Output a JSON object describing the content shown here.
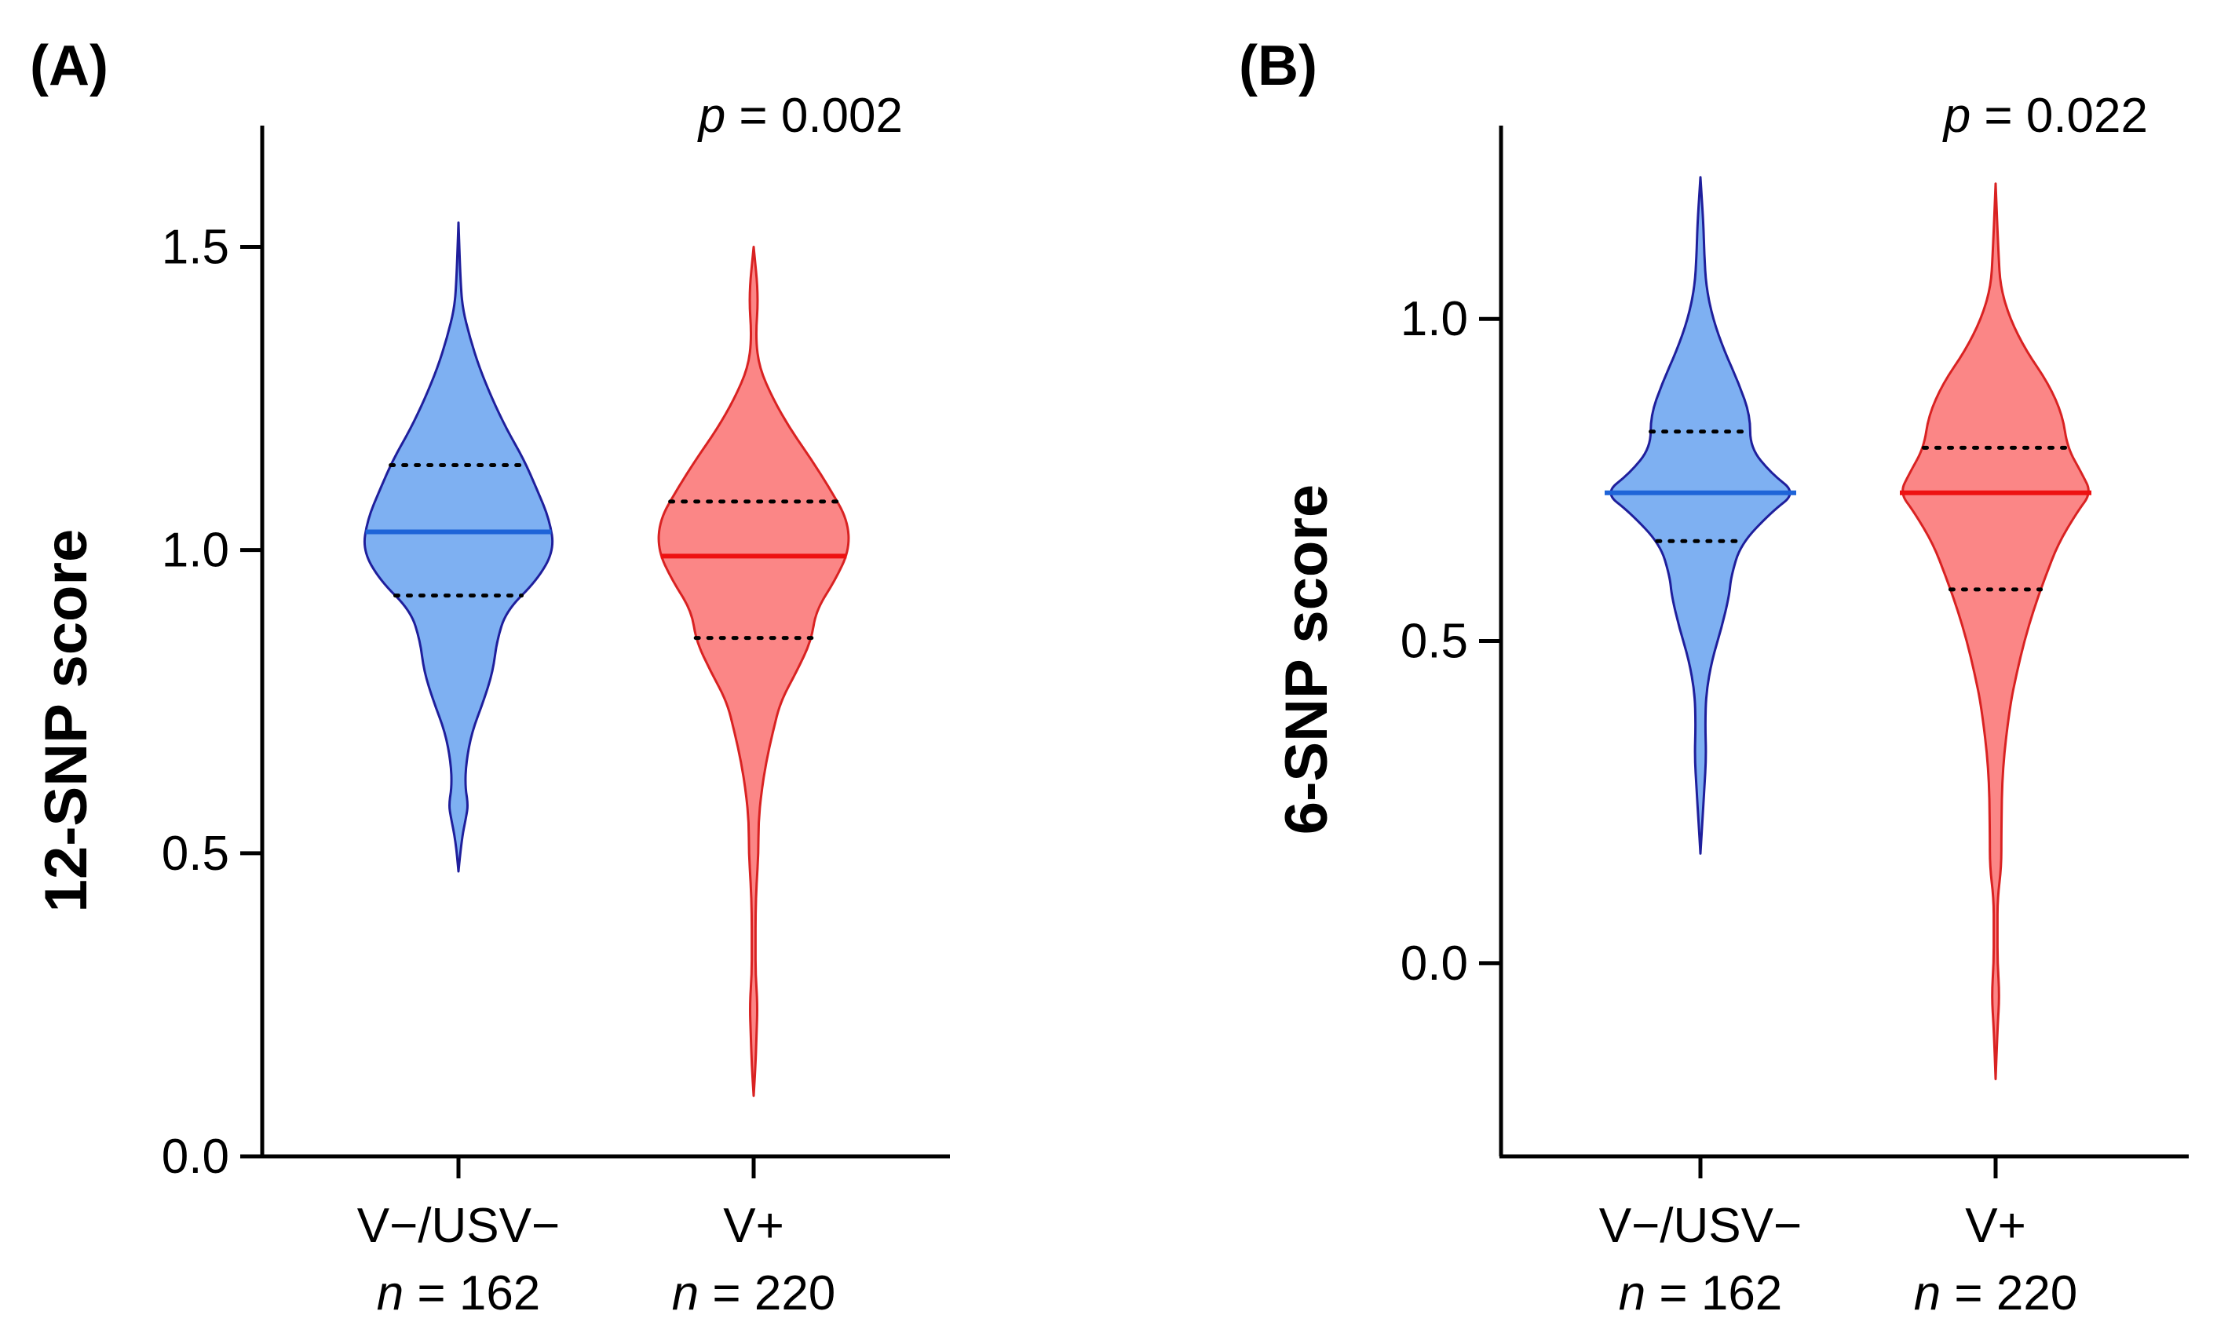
{
  "chart_data": [
    {
      "panel": "(A)",
      "type": "violin",
      "ylabel": "12-SNP score",
      "ylim": [
        0,
        1.7
      ],
      "yticks": [
        "0.0",
        "0.5",
        "1.0",
        "1.5"
      ],
      "ytick_values": [
        0,
        0.5,
        1.0,
        1.5
      ],
      "p_prefix": "p",
      "p_rest": " = 0.002",
      "groups": [
        {
          "name": "V−/USV−",
          "n_prefix": "n",
          "n_rest": " = 162",
          "fill": "#7eb0f2",
          "stroke": "#1f1f9c",
          "median_color": "#1e64d8",
          "min": 0.47,
          "max": 1.54,
          "median": 1.03,
          "q1": 0.925,
          "q3": 1.14,
          "density": [
            [
              0.47,
              0
            ],
            [
              0.52,
              0.03
            ],
            [
              0.56,
              0.08
            ],
            [
              0.58,
              0.1
            ],
            [
              0.61,
              0.07
            ],
            [
              0.65,
              0.08
            ],
            [
              0.7,
              0.14
            ],
            [
              0.75,
              0.26
            ],
            [
              0.8,
              0.36
            ],
            [
              0.85,
              0.4
            ],
            [
              0.9,
              0.5
            ],
            [
              0.95,
              0.82
            ],
            [
              1.0,
              1.0
            ],
            [
              1.05,
              0.95
            ],
            [
              1.1,
              0.82
            ],
            [
              1.15,
              0.68
            ],
            [
              1.2,
              0.5
            ],
            [
              1.25,
              0.35
            ],
            [
              1.3,
              0.22
            ],
            [
              1.35,
              0.12
            ],
            [
              1.4,
              0.04
            ],
            [
              1.45,
              0.02
            ],
            [
              1.54,
              0
            ]
          ]
        },
        {
          "name": "V+",
          "n_prefix": "n",
          "n_rest": " = 220",
          "fill": "#fb8686",
          "stroke": "#d92222",
          "median_color": "#ee1111",
          "min": 0.1,
          "max": 1.5,
          "median": 0.99,
          "q1": 0.855,
          "q3": 1.08,
          "density": [
            [
              0.1,
              0
            ],
            [
              0.15,
              0.02
            ],
            [
              0.2,
              0.03
            ],
            [
              0.25,
              0.04
            ],
            [
              0.3,
              0.02
            ],
            [
              0.35,
              0.02
            ],
            [
              0.4,
              0.02
            ],
            [
              0.45,
              0.03
            ],
            [
              0.5,
              0.05
            ],
            [
              0.55,
              0.05
            ],
            [
              0.6,
              0.08
            ],
            [
              0.65,
              0.13
            ],
            [
              0.7,
              0.2
            ],
            [
              0.75,
              0.28
            ],
            [
              0.8,
              0.45
            ],
            [
              0.85,
              0.6
            ],
            [
              0.9,
              0.65
            ],
            [
              0.95,
              0.85
            ],
            [
              1.0,
              1.0
            ],
            [
              1.05,
              0.98
            ],
            [
              1.1,
              0.8
            ],
            [
              1.15,
              0.6
            ],
            [
              1.2,
              0.38
            ],
            [
              1.25,
              0.2
            ],
            [
              1.3,
              0.06
            ],
            [
              1.35,
              0.02
            ],
            [
              1.42,
              0.05
            ],
            [
              1.5,
              0
            ]
          ]
        }
      ]
    },
    {
      "panel": "(B)",
      "type": "violin",
      "ylabel": "6-SNP score",
      "ylim": [
        -0.3,
        1.3
      ],
      "yticks": [
        "0.0",
        "0.5",
        "1.0"
      ],
      "ytick_values": [
        0,
        0.5,
        1.0
      ],
      "p_prefix": "p",
      "p_rest": " = 0.022",
      "groups": [
        {
          "name": "V−/USV−",
          "n_prefix": "n",
          "n_rest": " = 162",
          "fill": "#7eb0f2",
          "stroke": "#1f1f9c",
          "median_color": "#1e64d8",
          "min": 0.17,
          "max": 1.22,
          "median": 0.73,
          "q1": 0.655,
          "q3": 0.825,
          "density": [
            [
              0.17,
              0
            ],
            [
              0.22,
              0.02
            ],
            [
              0.27,
              0.04
            ],
            [
              0.32,
              0.06
            ],
            [
              0.37,
              0.05
            ],
            [
              0.42,
              0.06
            ],
            [
              0.47,
              0.12
            ],
            [
              0.52,
              0.22
            ],
            [
              0.57,
              0.3
            ],
            [
              0.6,
              0.32
            ],
            [
              0.65,
              0.42
            ],
            [
              0.7,
              0.74
            ],
            [
              0.73,
              1.0
            ],
            [
              0.76,
              0.74
            ],
            [
              0.8,
              0.52
            ],
            [
              0.85,
              0.52
            ],
            [
              0.9,
              0.4
            ],
            [
              0.95,
              0.25
            ],
            [
              1.0,
              0.13
            ],
            [
              1.05,
              0.06
            ],
            [
              1.1,
              0.04
            ],
            [
              1.15,
              0.03
            ],
            [
              1.22,
              0
            ]
          ]
        },
        {
          "name": "V+",
          "n_prefix": "n",
          "n_rest": " = 220",
          "fill": "#fb8686",
          "stroke": "#d92222",
          "median_color": "#ee1111",
          "min": -0.18,
          "max": 1.21,
          "median": 0.73,
          "q1": 0.58,
          "q3": 0.8,
          "density": [
            [
              -0.18,
              0
            ],
            [
              -0.1,
              0.02
            ],
            [
              -0.05,
              0.04
            ],
            [
              0.0,
              0.02
            ],
            [
              0.05,
              0.02
            ],
            [
              0.1,
              0.02
            ],
            [
              0.15,
              0.06
            ],
            [
              0.2,
              0.06
            ],
            [
              0.3,
              0.07
            ],
            [
              0.4,
              0.15
            ],
            [
              0.45,
              0.22
            ],
            [
              0.5,
              0.3
            ],
            [
              0.55,
              0.4
            ],
            [
              0.6,
              0.52
            ],
            [
              0.65,
              0.65
            ],
            [
              0.7,
              0.85
            ],
            [
              0.73,
              1.0
            ],
            [
              0.76,
              0.9
            ],
            [
              0.8,
              0.75
            ],
            [
              0.85,
              0.7
            ],
            [
              0.9,
              0.55
            ],
            [
              0.95,
              0.32
            ],
            [
              1.0,
              0.15
            ],
            [
              1.05,
              0.05
            ],
            [
              1.1,
              0.03
            ],
            [
              1.21,
              0
            ]
          ]
        }
      ]
    }
  ]
}
